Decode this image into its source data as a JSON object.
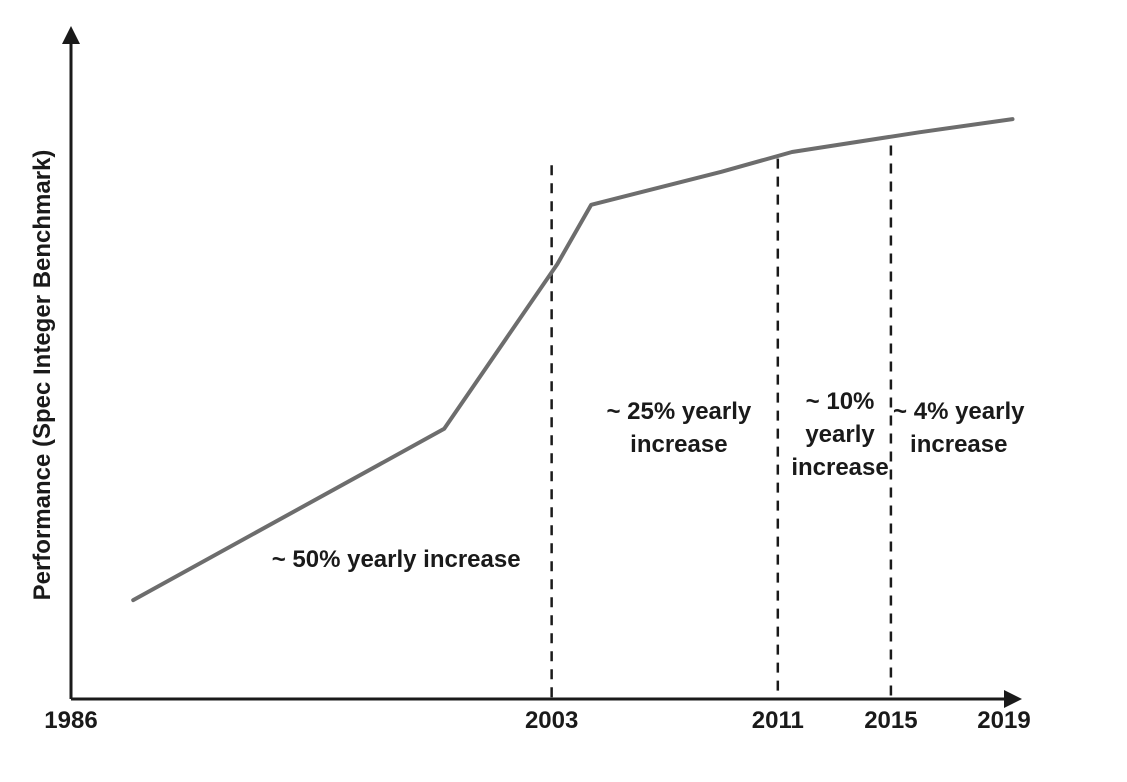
{
  "chart_data": {
    "type": "line",
    "title": "",
    "xlabel": "",
    "ylabel": "Performance (Spec Integer Benchmark)",
    "xlim": [
      1986,
      2019
    ],
    "ylim": [
      0,
      100
    ],
    "x_ticks": [
      "1986",
      "2003",
      "2011",
      "2015",
      "2019"
    ],
    "grid": false,
    "series": [
      {
        "color": "#6d6d6d",
        "x": [
          1988.2,
          1999.2,
          2003.2,
          2004.4,
          2009,
          2011.5,
          2016,
          2019.3
        ],
        "y": [
          15,
          41,
          66,
          75,
          80,
          83,
          86,
          88
        ]
      }
    ],
    "dividers": [
      {
        "x": 2003,
        "ytop": 81
      },
      {
        "x": 2011,
        "ytop": 82
      },
      {
        "x": 2015,
        "ytop": 84
      }
    ],
    "annotations": [
      {
        "lines": [
          "~ 50% yearly increase"
        ],
        "x": 1997.5,
        "y": 20
      },
      {
        "lines": [
          "~ 25% yearly",
          "increase"
        ],
        "x": 2007.5,
        "y": 40
      },
      {
        "lines": [
          "~ 10%",
          "yearly",
          "increase"
        ],
        "x": 2013.2,
        "y": 39
      },
      {
        "lines": [
          "~ 4% yearly",
          "increase"
        ],
        "x": 2017.4,
        "y": 40
      }
    ]
  }
}
